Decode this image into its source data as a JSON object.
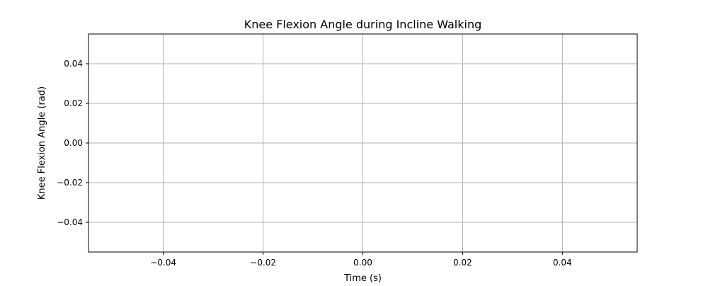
{
  "chart_data": {
    "type": "line",
    "title": "Knee Flexion Angle during Incline Walking",
    "xlabel": "Time (s)",
    "ylabel": "Knee Flexion Angle (rad)",
    "xlim": [
      -0.055,
      0.055
    ],
    "ylim": [
      -0.055,
      0.055
    ],
    "x_ticks": [
      -0.04,
      -0.02,
      0.0,
      0.02,
      0.04
    ],
    "x_tick_labels": [
      "−0.04",
      "−0.02",
      "0.00",
      "0.02",
      "0.04"
    ],
    "y_ticks": [
      -0.04,
      -0.02,
      0.0,
      0.02,
      0.04
    ],
    "y_tick_labels": [
      "−0.04",
      "−0.02",
      "0.00",
      "0.02",
      "0.04"
    ],
    "grid": true,
    "series": [],
    "grid_color": "#b0b0b0",
    "axes_color": "#000000"
  }
}
